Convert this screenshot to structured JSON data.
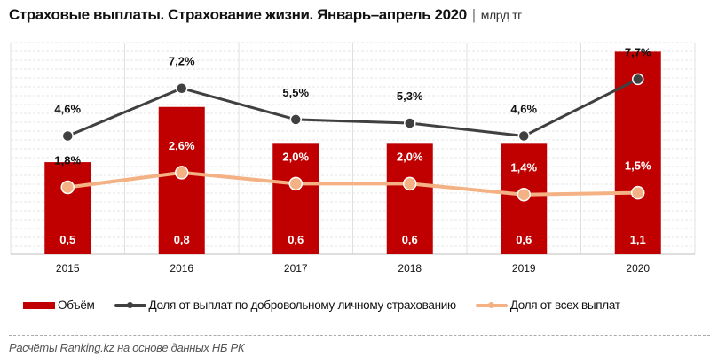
{
  "chart_data": {
    "type": "bar",
    "title": "Страховые выплаты. Страхование жизни.  Январь–апрель 2020",
    "unit": "млрд тг",
    "categories": [
      "2015",
      "2016",
      "2017",
      "2018",
      "2019",
      "2020"
    ],
    "ylim": [
      0,
      1.15
    ],
    "y2lim": [
      -1.85,
      9.7
    ],
    "grid": true,
    "legend_position": "bottom",
    "series": [
      {
        "name": "Объём",
        "type": "bar",
        "axis": "primary",
        "color": "#c00000",
        "values": [
          0.5,
          0.8,
          0.6,
          0.6,
          0.6,
          1.1
        ],
        "labels": [
          "0,5",
          "0,8",
          "0,6",
          "0,6",
          "0,6",
          "1,1"
        ]
      },
      {
        "name": "Доля от выплат по добровольному личному страхованию",
        "type": "line",
        "axis": "secondary",
        "color": "#404040",
        "values": [
          4.6,
          7.2,
          5.5,
          5.3,
          4.6,
          7.7
        ],
        "labels": [
          "4,6%",
          "7,2%",
          "5,5%",
          "5,3%",
          "4,6%",
          "7,7%"
        ]
      },
      {
        "name": "Доля от всех выплат",
        "type": "line",
        "axis": "secondary",
        "color": "#f4b183",
        "values": [
          1.8,
          2.6,
          2.0,
          2.0,
          1.4,
          1.5
        ],
        "labels": [
          "1,8%",
          "2,6%",
          "2,0%",
          "2,0%",
          "1,4%",
          "1,5%"
        ]
      }
    ]
  },
  "source": "Расчёты Ranking.kz на основе данных  НБ РК"
}
